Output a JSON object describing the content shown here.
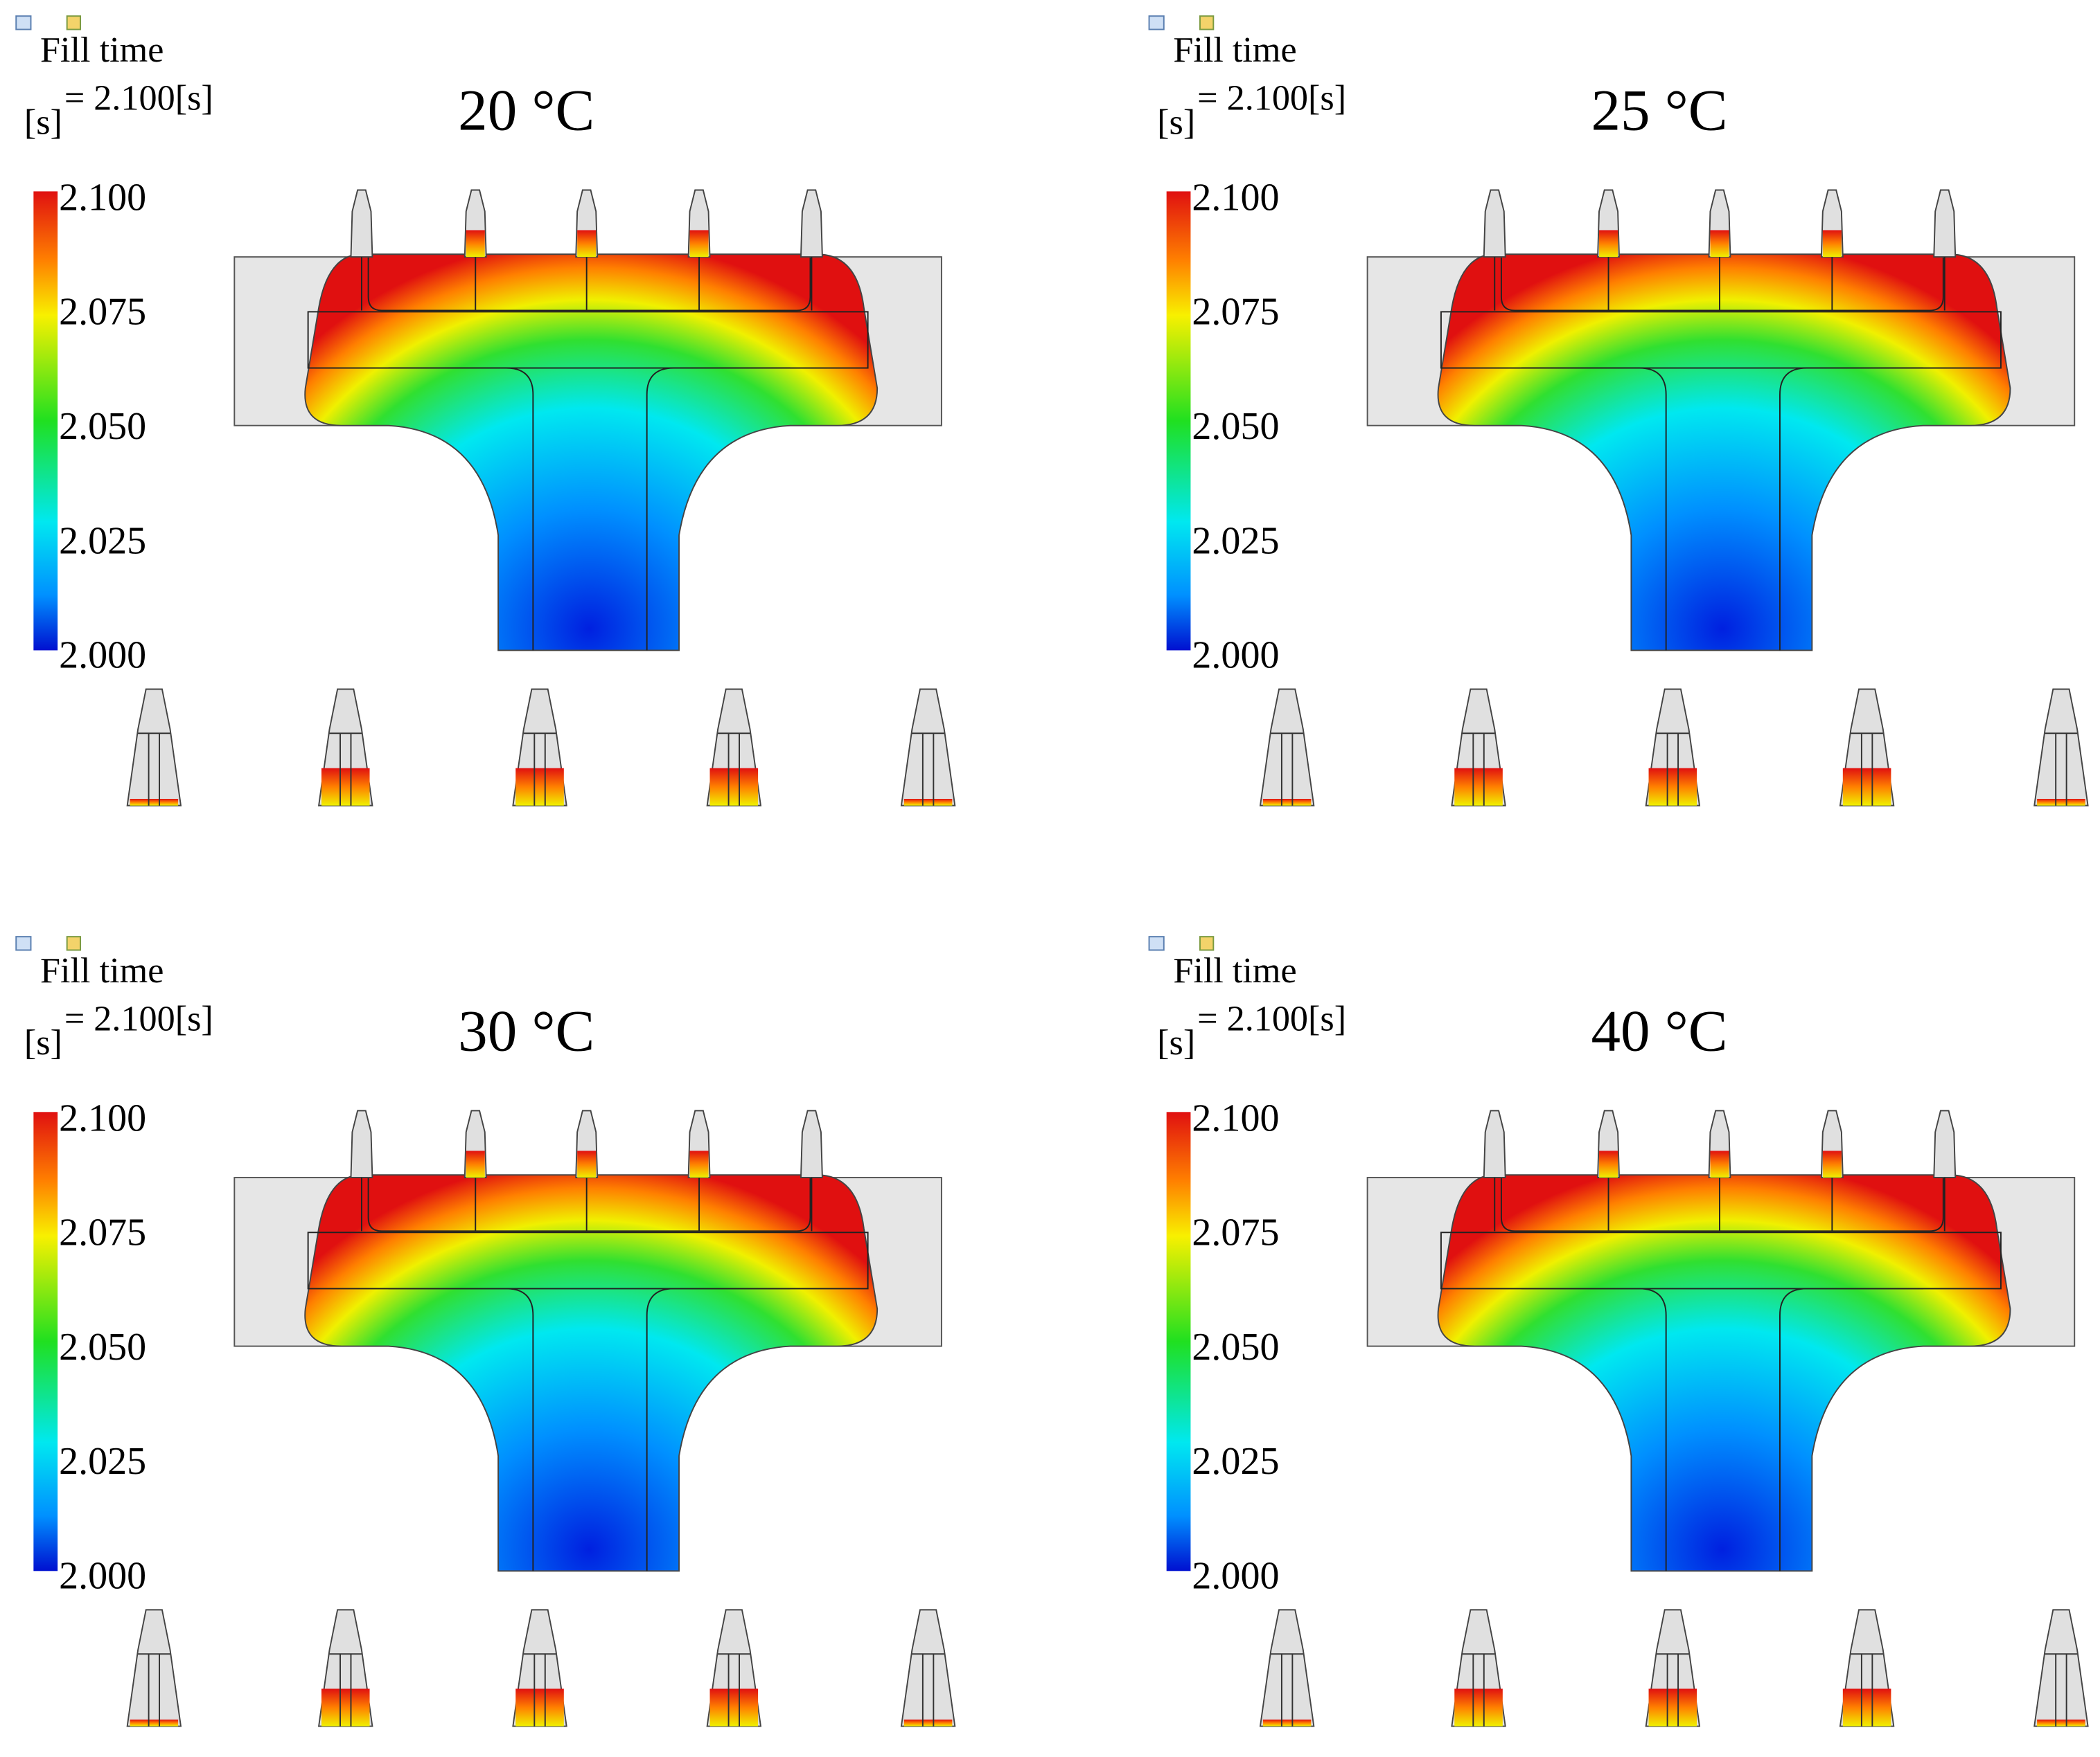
{
  "panels": [
    {
      "legend_title": "Fill time",
      "unit": "[s]",
      "max_label": "= 2.100[s]",
      "title": "20 °C",
      "colorbar_labels": [
        "2.100",
        "2.075",
        "2.050",
        "2.025",
        "2.000"
      ]
    },
    {
      "legend_title": "Fill time",
      "unit": "[s]",
      "max_label": "= 2.100[s]",
      "title": "25 °C",
      "colorbar_labels": [
        "2.100",
        "2.075",
        "2.050",
        "2.025",
        "2.000"
      ]
    },
    {
      "legend_title": "Fill time",
      "unit": "[s]",
      "max_label": "= 2.100[s]",
      "title": "30 °C",
      "colorbar_labels": [
        "2.100",
        "2.075",
        "2.050",
        "2.025",
        "2.000"
      ]
    },
    {
      "legend_title": "Fill time",
      "unit": "[s]",
      "max_label": "= 2.100[s]",
      "title": "40 °C",
      "colorbar_labels": [
        "2.100",
        "2.075",
        "2.050",
        "2.025",
        "2.000"
      ]
    }
  ]
}
